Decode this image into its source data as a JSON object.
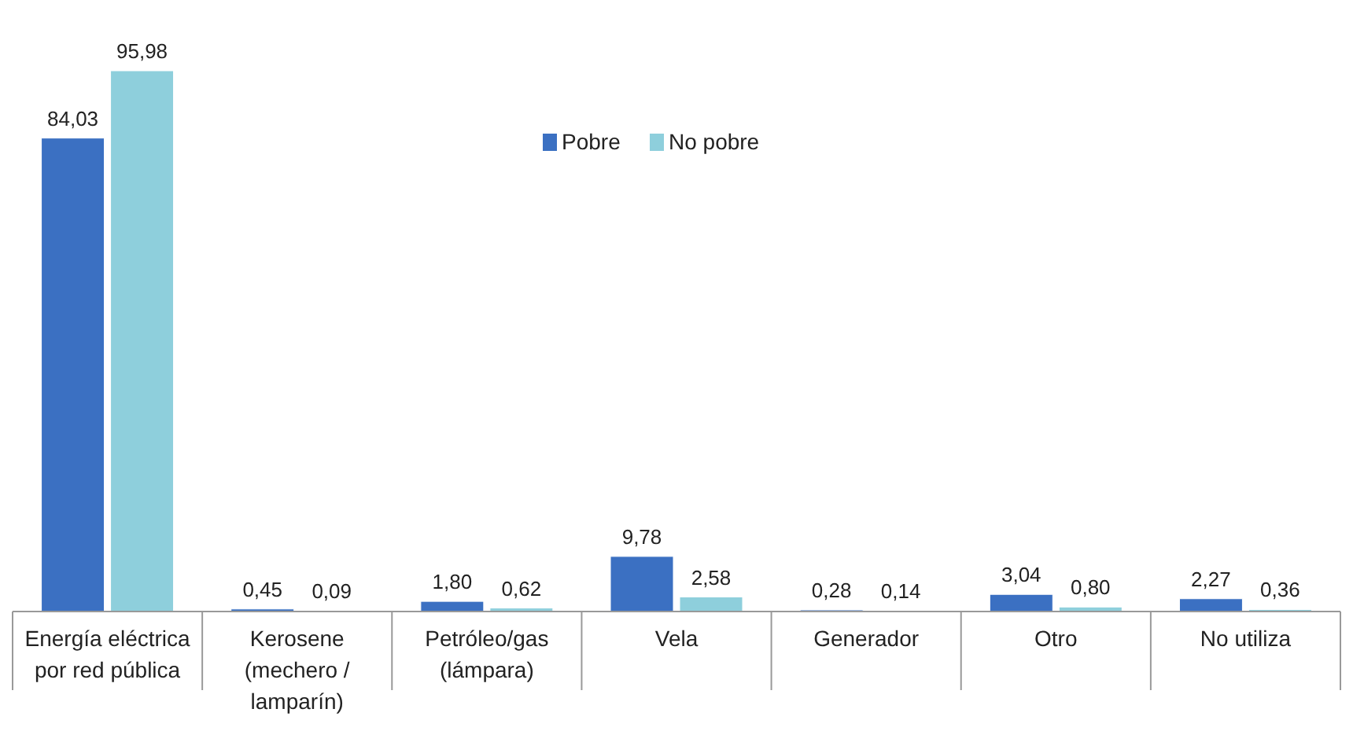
{
  "chart_data": {
    "type": "bar",
    "categories": [
      "Energía eléctrica\npor red pública",
      "Kerosene\n(mechero /\nlamparín)",
      "Petróleo/gas\n(lámpara)",
      "Vela",
      "Generador",
      "Otro",
      "No utiliza"
    ],
    "series": [
      {
        "name": "Pobre",
        "color": "#3b70c2",
        "values": [
          84.03,
          0.45,
          1.8,
          9.78,
          0.28,
          3.04,
          2.27
        ],
        "value_labels": [
          "84,03",
          "0,45",
          "1,80",
          "9,78",
          "0,28",
          "3,04",
          "2,27"
        ]
      },
      {
        "name": "No pobre",
        "color": "#8ecfdc",
        "values": [
          95.98,
          0.09,
          0.62,
          2.58,
          0.14,
          0.8,
          0.36
        ],
        "value_labels": [
          "95,98",
          "0,09",
          "0,62",
          "2,58",
          "0,14",
          "0,80",
          "0,36"
        ]
      }
    ],
    "legend": "top"
  }
}
